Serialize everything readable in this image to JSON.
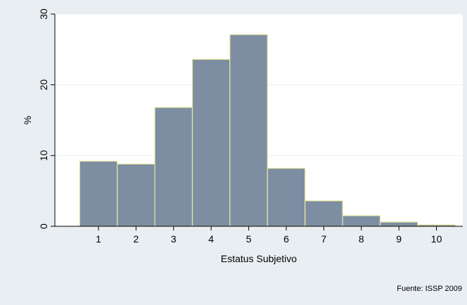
{
  "chart_data": {
    "type": "bar",
    "categories": [
      "1",
      "2",
      "3",
      "4",
      "5",
      "6",
      "7",
      "8",
      "9",
      "10"
    ],
    "values": [
      9.2,
      8.8,
      16.8,
      23.6,
      27.1,
      8.2,
      3.6,
      1.5,
      0.6,
      0.2
    ],
    "xlabel": "Estatus Subjetivo",
    "ylabel": "%",
    "ylim": [
      0,
      30
    ],
    "yticks": [
      0,
      10,
      20,
      30
    ],
    "grid": true,
    "legend": "none",
    "colors": {
      "bar_fill": "#7d8ea2",
      "bar_stroke": "#e8e8a0",
      "plot_bg": "#ffffff",
      "outer_bg": "#e9eef2",
      "grid": "#eaf0f4"
    }
  },
  "note": "Fuente: ISSP 2009"
}
